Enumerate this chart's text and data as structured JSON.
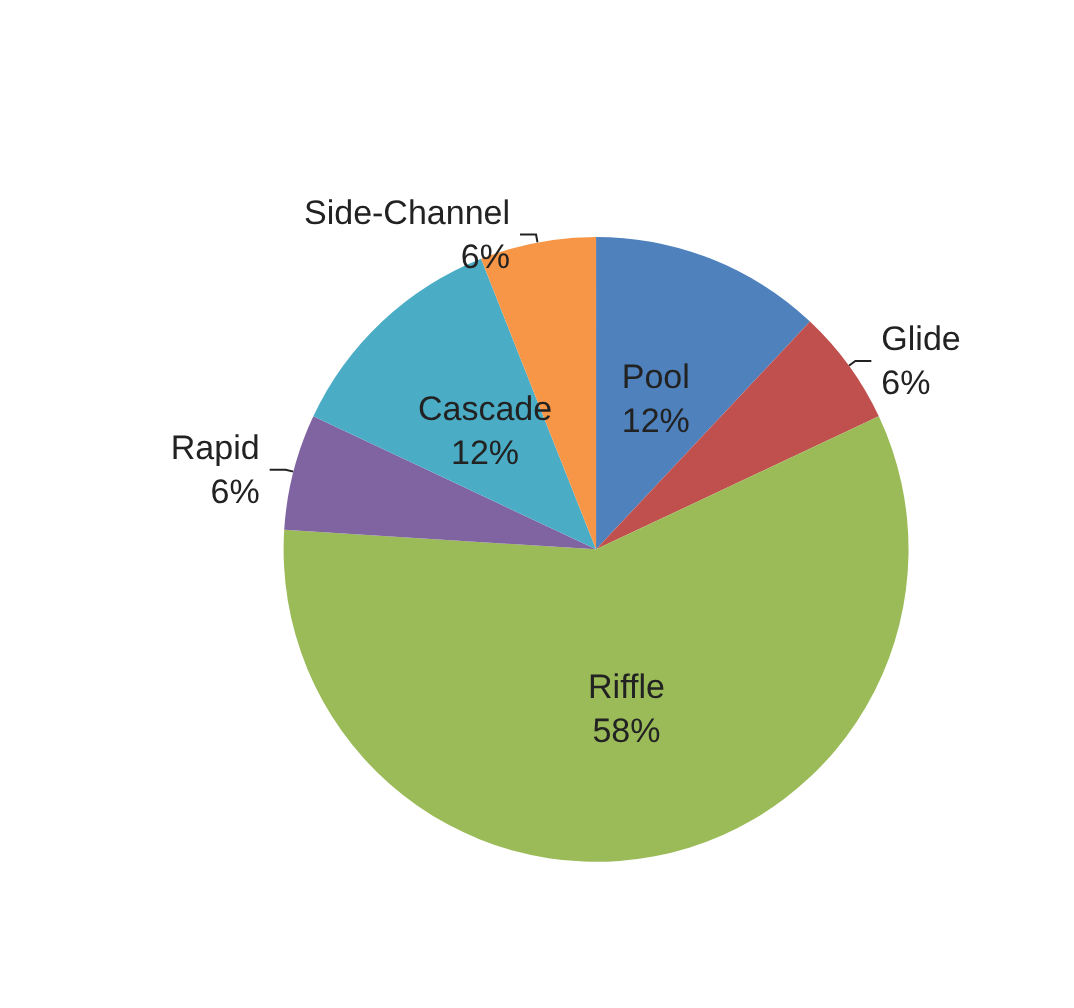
{
  "chart_data": {
    "type": "pie",
    "categories": [
      "Pool",
      "Glide",
      "Riffle",
      "Rapid",
      "Cascade",
      "Side-Channel"
    ],
    "values": [
      12,
      6,
      58,
      6,
      12,
      6
    ],
    "colors": [
      "#4f81bd",
      "#c0504d",
      "#9bbb59",
      "#8064a2",
      "#4bacc6",
      "#f79646"
    ],
    "value_labels": [
      "12%",
      "6%",
      "58%",
      "6%",
      "12%",
      "6%"
    ]
  }
}
